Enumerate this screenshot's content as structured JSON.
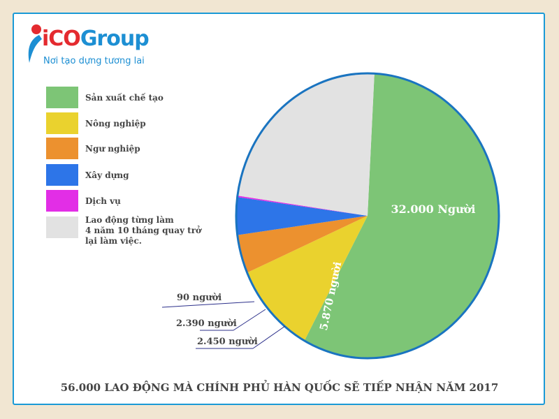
{
  "logo": {
    "brand": "iCOGroup",
    "brand_a": "iCO",
    "brand_b": "Group",
    "tagline": "Nơi tạo dựng tương lai"
  },
  "chart_data": {
    "type": "pie",
    "title": "56.000 LAO ĐỘNG MÀ CHÍNH PHỦ HÀN QUỐC SẼ TIẾP NHẬN NĂM 2017",
    "legend_placement": "left",
    "slices": [
      {
        "name": "Sản xuất chế tạo",
        "value": 32000,
        "label": "32.000 Người",
        "color": "#7dc576"
      },
      {
        "name": "Nông nghiệp",
        "value": 5870,
        "label": "5.870 người",
        "color": "#ead22e"
      },
      {
        "name": "Ngư nghiệp",
        "value": 2450,
        "label": "2.450 người",
        "color": "#ec912f"
      },
      {
        "name": "Xây dựng",
        "value": 2390,
        "label": "2.390  người",
        "color": "#2d75e8"
      },
      {
        "name": "Dịch vụ",
        "value": 90,
        "label": "90 người",
        "color": "#e22ee6"
      },
      {
        "name": "Lao động từng làm 4 năm 10 tháng quay trở lại làm việc.",
        "value": 13200,
        "label": "",
        "color": "#e2e2e2"
      }
    ],
    "legend_lines": [
      [
        "Sản xuất chế tạo"
      ],
      [
        "Nông nghiệp"
      ],
      [
        "Ngư nghiệp"
      ],
      [
        "Xây dựng"
      ],
      [
        "Dịch vụ"
      ],
      [
        "Lao động từng làm",
        "4 năm 10 tháng quay trở",
        "lại làm việc."
      ]
    ]
  },
  "colors": {
    "border": "#1a9ad6",
    "pie_outline": "#1a74c0",
    "leader": "#2b2f8a"
  }
}
